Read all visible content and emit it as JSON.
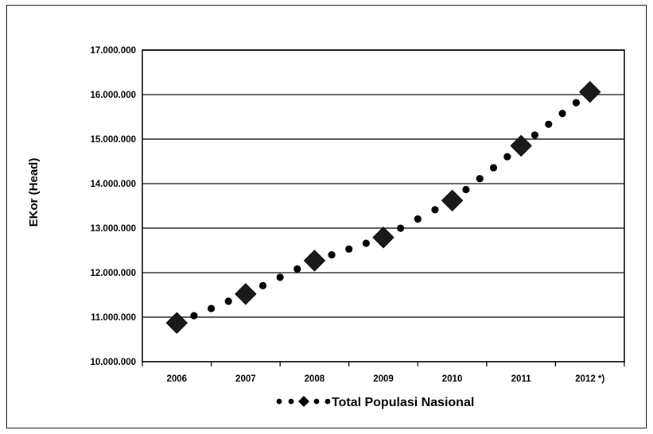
{
  "chart_data": {
    "type": "line",
    "ylabel": "EKor (Head)",
    "categories": [
      "2006",
      "2007",
      "2008",
      "2009",
      "2010",
      "2011",
      "2012 *)"
    ],
    "ylim": [
      10000000,
      17000000
    ],
    "yticks": [
      10000000,
      11000000,
      12000000,
      13000000,
      14000000,
      15000000,
      16000000,
      17000000
    ],
    "ytick_labels": [
      "10.000.000",
      "11.000.000",
      "12.000.000",
      "13.000.000",
      "14.000.000",
      "15.000.000",
      "16.000.000",
      "17.000.000"
    ],
    "grid": true,
    "legend_position": "bottom",
    "series": [
      {
        "name": "Total Populasi Nasional",
        "values": [
          10870000,
          11520000,
          12270000,
          12790000,
          13620000,
          14850000,
          16060000
        ],
        "marker": "diamond",
        "line_style": "dotted",
        "color": "#000000"
      }
    ]
  }
}
